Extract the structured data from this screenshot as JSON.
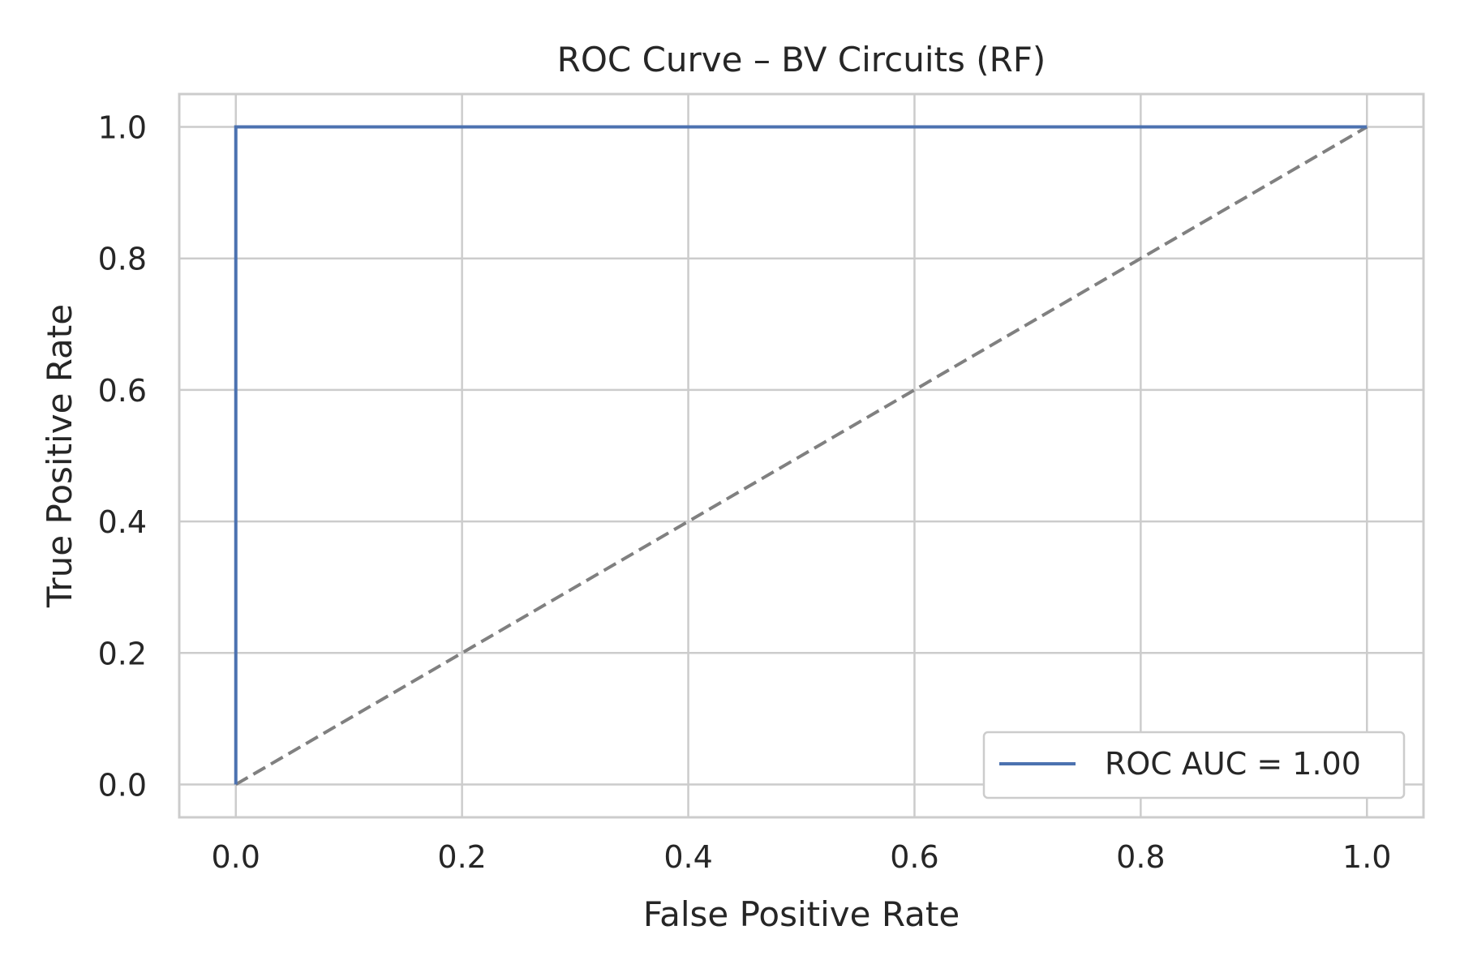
{
  "chart_data": {
    "type": "line",
    "title": "ROC Curve – BV Circuits (RF)",
    "xlabel": "False Positive Rate",
    "ylabel": "True Positive Rate",
    "xlim": [
      -0.05,
      1.05
    ],
    "ylim": [
      -0.05,
      1.05
    ],
    "xticks": [
      0.0,
      0.2,
      0.4,
      0.6,
      0.8,
      1.0
    ],
    "xtick_labels": [
      "0.0",
      "0.2",
      "0.4",
      "0.6",
      "0.8",
      "1.0"
    ],
    "yticks": [
      0.0,
      0.2,
      0.4,
      0.6,
      0.8,
      1.0
    ],
    "ytick_labels": [
      "0.0",
      "0.2",
      "0.4",
      "0.6",
      "0.8",
      "1.0"
    ],
    "grid": true,
    "legend_position": "lower-right",
    "series": [
      {
        "name": "ROC AUC = 1.00",
        "x": [
          0.0,
          0.0,
          1.0
        ],
        "y": [
          0.0,
          1.0,
          1.0
        ],
        "color": "#4c72b0",
        "style": "solid"
      }
    ],
    "reference_line": {
      "x": [
        0.0,
        1.0
      ],
      "y": [
        0.0,
        1.0
      ],
      "color": "#808080",
      "style": "dashed"
    },
    "colors": {
      "grid": "#cccccc",
      "frame": "#cccccc",
      "text": "#262626",
      "background": "#ffffff"
    }
  }
}
